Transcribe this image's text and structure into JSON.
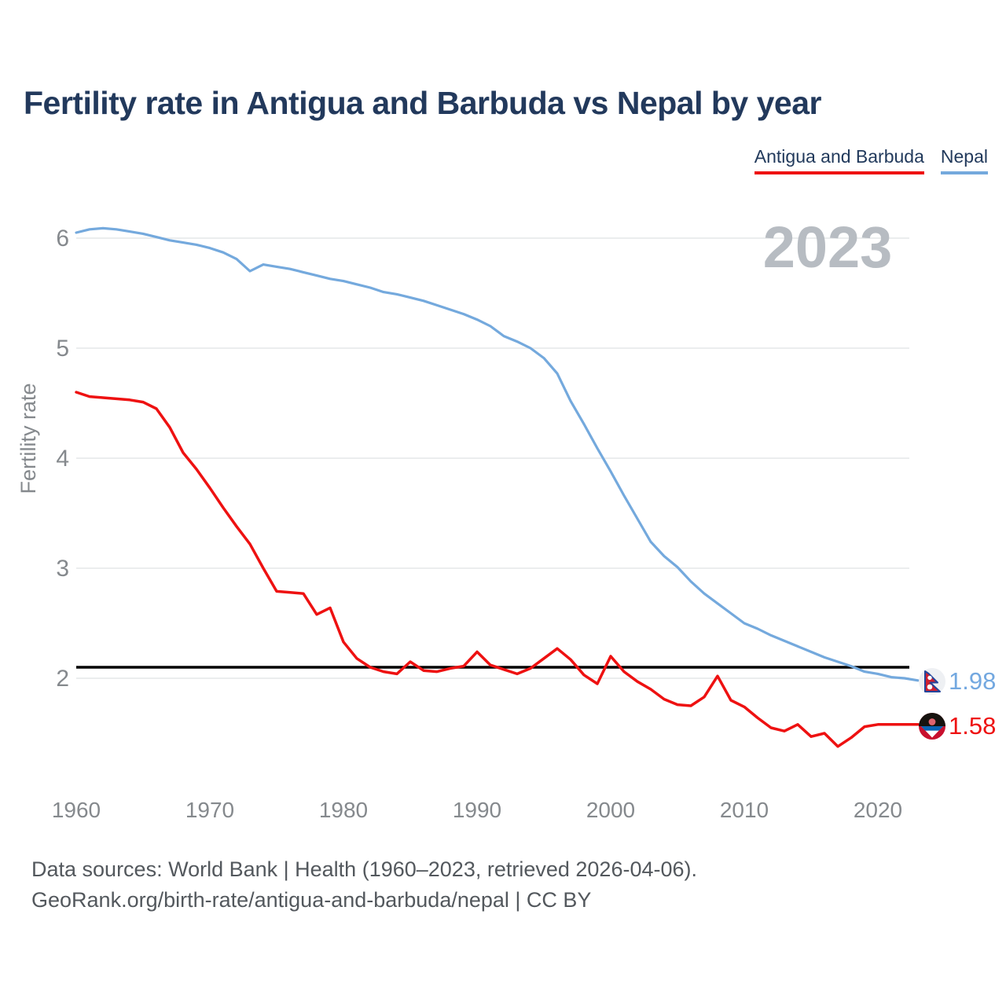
{
  "title": "Fertility rate in Antigua and Barbuda vs Nepal by year",
  "watermark_year": "2023",
  "legend": [
    {
      "label": "Antigua and Barbuda",
      "color": "#ee1111"
    },
    {
      "label": "Nepal",
      "color": "#74a9dd"
    }
  ],
  "end_labels": [
    {
      "series": "Nepal",
      "value": "1.98",
      "color": "#73a8e0",
      "flag": "nepal-flag-icon"
    },
    {
      "series": "Antigua and Barbuda",
      "value": "1.58",
      "color": "#ee1111",
      "flag": "antigua-and-barbuda-flag-icon"
    }
  ],
  "footer": {
    "line1": "Data sources: World Bank | Health (1960–2023, retrieved 2026-04-06).",
    "line2": "GeoRank.org/birth-rate/antigua-and-barbuda/nepal | CC BY"
  },
  "chart_data": {
    "type": "line",
    "title": "Fertility rate in Antigua and Barbuda vs Nepal by year",
    "xlabel": "",
    "ylabel": "Fertility rate",
    "ylim": [
      1.3,
      6.4
    ],
    "xlim": [
      1960,
      2023
    ],
    "grid": "horizontal",
    "legend_position": "top-right",
    "yticks": [
      2,
      3,
      4,
      5,
      6
    ],
    "xticks": [
      1960,
      1970,
      1980,
      1990,
      2000,
      2010,
      2020
    ],
    "reference_line": {
      "value": 2.1,
      "color": "#000000"
    },
    "x": [
      1960,
      1961,
      1962,
      1963,
      1964,
      1965,
      1966,
      1967,
      1968,
      1969,
      1970,
      1971,
      1972,
      1973,
      1974,
      1975,
      1976,
      1977,
      1978,
      1979,
      1980,
      1981,
      1982,
      1983,
      1984,
      1985,
      1986,
      1987,
      1988,
      1989,
      1990,
      1991,
      1992,
      1993,
      1994,
      1995,
      1996,
      1997,
      1998,
      1999,
      2000,
      2001,
      2002,
      2003,
      2004,
      2005,
      2006,
      2007,
      2008,
      2009,
      2010,
      2011,
      2012,
      2013,
      2014,
      2015,
      2016,
      2017,
      2018,
      2019,
      2020,
      2021,
      2022,
      2023
    ],
    "series": [
      {
        "name": "Nepal",
        "color": "#74a9dd",
        "stroke_width": 3.2,
        "values": [
          6.05,
          6.08,
          6.09,
          6.08,
          6.06,
          6.04,
          6.01,
          5.98,
          5.96,
          5.94,
          5.91,
          5.87,
          5.81,
          5.7,
          5.76,
          5.74,
          5.72,
          5.69,
          5.66,
          5.63,
          5.61,
          5.58,
          5.55,
          5.51,
          5.49,
          5.46,
          5.43,
          5.39,
          5.35,
          5.31,
          5.26,
          5.2,
          5.11,
          5.06,
          5.0,
          4.91,
          4.77,
          4.52,
          4.31,
          4.09,
          3.88,
          3.66,
          3.45,
          3.24,
          3.11,
          3.01,
          2.88,
          2.77,
          2.68,
          2.59,
          2.5,
          2.45,
          2.39,
          2.34,
          2.29,
          2.24,
          2.19,
          2.15,
          2.11,
          2.06,
          2.04,
          2.01,
          2.0,
          1.98
        ]
      },
      {
        "name": "Antigua and Barbuda",
        "color": "#ee1111",
        "stroke_width": 3.5,
        "values": [
          4.6,
          4.56,
          4.55,
          4.54,
          4.53,
          4.51,
          4.45,
          4.28,
          4.05,
          3.9,
          3.73,
          3.55,
          3.38,
          3.22,
          3.0,
          2.79,
          2.78,
          2.77,
          2.58,
          2.64,
          2.33,
          2.18,
          2.1,
          2.06,
          2.04,
          2.15,
          2.07,
          2.06,
          2.09,
          2.11,
          2.24,
          2.12,
          2.08,
          2.04,
          2.09,
          2.18,
          2.27,
          2.17,
          2.03,
          1.95,
          2.2,
          2.06,
          1.97,
          1.9,
          1.81,
          1.76,
          1.75,
          1.83,
          2.02,
          1.8,
          1.74,
          1.64,
          1.55,
          1.52,
          1.58,
          1.47,
          1.5,
          1.38,
          1.46,
          1.56,
          1.58,
          1.58,
          1.58,
          1.58
        ]
      }
    ]
  }
}
